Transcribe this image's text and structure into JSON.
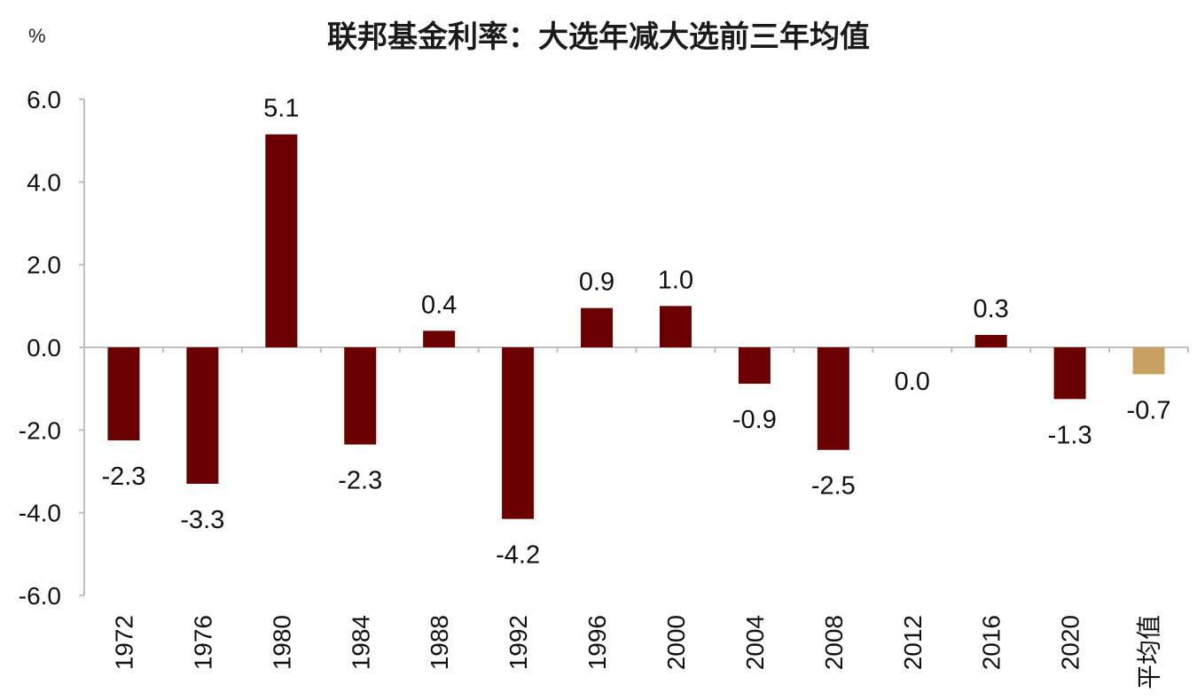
{
  "chart_data": {
    "type": "bar",
    "title": "联邦基金利率：大选年减大选前三年均值",
    "ylabel": "%",
    "xlabel": "",
    "categories": [
      "1972",
      "1976",
      "1980",
      "1984",
      "1988",
      "1992",
      "1996",
      "2000",
      "2004",
      "2008",
      "2012",
      "2016",
      "2020",
      "平均值"
    ],
    "values": [
      -2.3,
      -3.3,
      5.1,
      -2.3,
      0.4,
      -4.2,
      0.9,
      1.0,
      -0.9,
      -2.5,
      0.0,
      0.3,
      -1.3,
      -0.7
    ],
    "value_labels": [
      "-2.3",
      "-3.3",
      "5.1",
      "-2.3",
      "0.4",
      "-4.2",
      "0.9",
      "1.0",
      "-0.9",
      "-2.5",
      "0.0",
      "0.3",
      "-1.3",
      "-0.7"
    ],
    "bar_values": [
      -2.25,
      -3.3,
      5.15,
      -2.35,
      0.4,
      -4.15,
      0.95,
      1.0,
      -0.88,
      -2.48,
      0.0,
      0.3,
      -1.25,
      -0.65
    ],
    "ylim": [
      -6.0,
      6.0
    ],
    "y_ticks": [
      "6.0",
      "4.0",
      "2.0",
      "0.0",
      "-2.0",
      "-4.0",
      "-6.0"
    ],
    "grid": false,
    "legend": "none",
    "colors": {
      "bar": "#6b0000",
      "average_bar": "#c9a263",
      "axis": "#bfbfbf"
    }
  }
}
